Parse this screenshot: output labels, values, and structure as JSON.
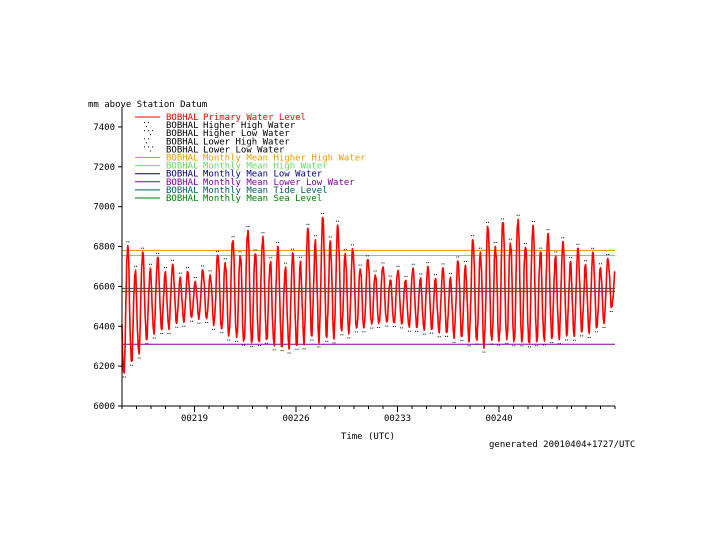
{
  "chart_data": {
    "type": "line",
    "ylabel": "mm above Station Datum",
    "xlabel": "Time (UTC)",
    "footer": "generated 20010404+1727/UTC",
    "ylim": [
      6000,
      7500
    ],
    "yticks": [
      6000,
      6200,
      6400,
      6600,
      6800,
      7000,
      7200,
      7400
    ],
    "ytick_labels": [
      "6000",
      "6200",
      "6400",
      "6600",
      "6800",
      "7000",
      "7200",
      "7400"
    ],
    "xlim": [
      214.0,
      248.0
    ],
    "xticks": [
      219,
      226,
      233,
      240
    ],
    "xtick_labels": [
      "00219",
      "00226",
      "00233",
      "00240"
    ],
    "grid": false,
    "legend_position": "top-left",
    "legend": [
      {
        "station": "BOBHAL",
        "label": "Primary Water Level",
        "color": "#ff0000",
        "style": "line"
      },
      {
        "station": "BOBHAL",
        "label": "Higher High Water",
        "color": "#000000",
        "style": "dots"
      },
      {
        "station": "BOBHAL",
        "label": "Higher Low Water",
        "color": "#000000",
        "style": "dots"
      },
      {
        "station": "BOBHAL",
        "label": "Lower High Water",
        "color": "#000000",
        "style": "dots"
      },
      {
        "station": "BOBHAL",
        "label": "Lower Low Water",
        "color": "#000000",
        "style": "dots"
      },
      {
        "station": "BOBHAL",
        "label": "Monthly Mean Higher High Water",
        "color": "#e8a000",
        "style": "line"
      },
      {
        "station": "BOBHAL",
        "label": "Monthly Mean High Water",
        "color": "#66dd66",
        "style": "line"
      },
      {
        "station": "BOBHAL",
        "label": "Monthly Mean Low Water",
        "color": "#000080",
        "style": "line"
      },
      {
        "station": "BOBHAL",
        "label": "Monthly Mean Lower Low Water",
        "color": "#8000a0",
        "style": "line"
      },
      {
        "station": "BOBHAL",
        "label": "Monthly Mean Tide Level",
        "color": "#006060",
        "style": "line"
      },
      {
        "station": "BOBHAL",
        "label": "Monthly Mean Sea Level",
        "color": "#008000",
        "style": "line"
      }
    ],
    "monthly_means": {
      "mhhw": 6780,
      "mhw": 6755,
      "mtl": 6590,
      "msl": 6575,
      "mlw": 6400,
      "mllw": 6310
    },
    "series": [
      {
        "name": "Primary Water Level",
        "color": "#ff0000",
        "x": [
          214.0,
          215.0,
          216.0,
          217.0,
          218.0,
          219.0,
          220.0,
          221.0,
          222.0,
          223.0,
          224.0,
          225.0,
          226.0,
          227.0,
          228.0,
          229.0,
          230.0,
          231.0,
          232.0,
          233.0,
          234.0,
          235.0,
          236.0,
          237.0,
          238.0,
          239.0,
          240.0,
          241.0,
          242.0,
          243.0,
          244.0,
          245.0,
          246.0,
          247.0,
          248.0
        ],
        "envelope_high": [
          6820,
          6780,
          6760,
          6730,
          6690,
          6660,
          6700,
          6800,
          6860,
          6900,
          6830,
          6790,
          6760,
          6920,
          6950,
          6900,
          6780,
          6740,
          6700,
          6680,
          6690,
          6700,
          6690,
          6710,
          6820,
          6900,
          6930,
          6950,
          6920,
          6880,
          6840,
          6800,
          6780,
          6760,
          6720
        ],
        "envelope_low": [
          6080,
          6200,
          6330,
          6360,
          6400,
          6430,
          6410,
          6330,
          6280,
          6250,
          6280,
          6250,
          6260,
          6300,
          6280,
          6320,
          6340,
          6370,
          6390,
          6390,
          6370,
          6360,
          6350,
          6320,
          6290,
          6250,
          6270,
          6260,
          6250,
          6280,
          6300,
          6320,
          6340,
          6360,
          6500
        ]
      }
    ]
  }
}
